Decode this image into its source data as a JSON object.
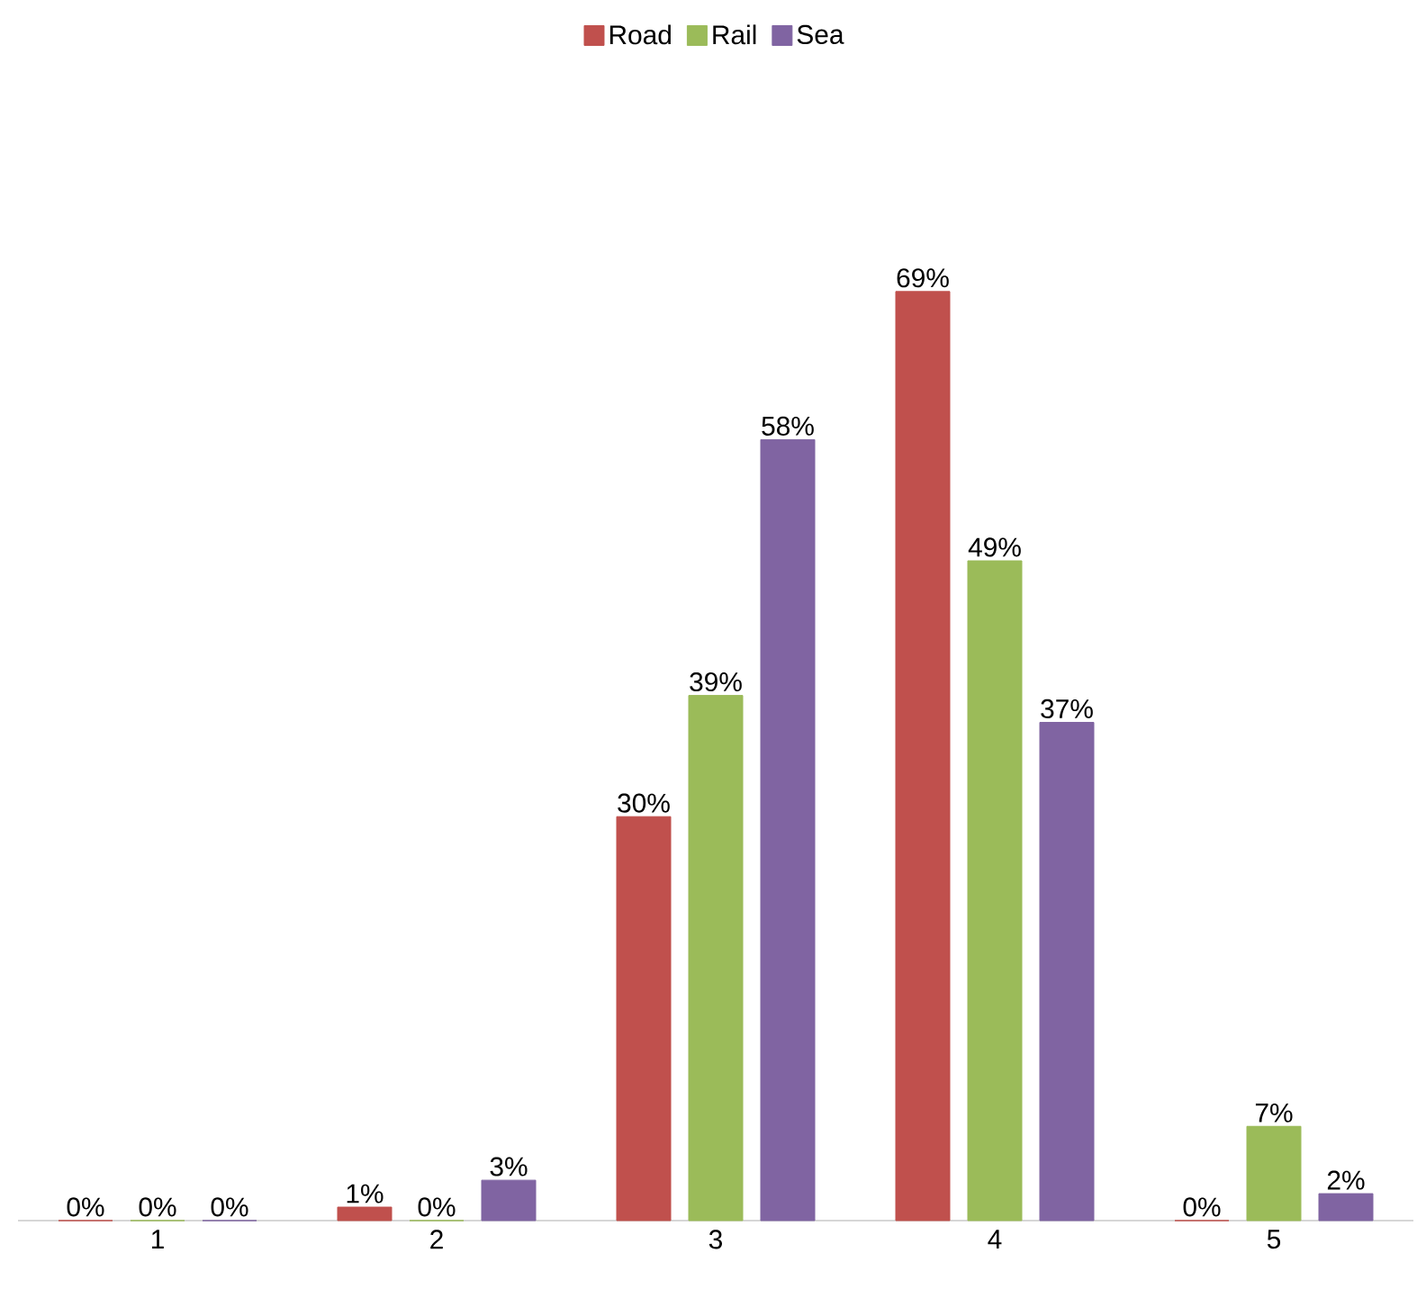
{
  "chart_data": {
    "type": "bar",
    "categories": [
      "1",
      "2",
      "3",
      "4",
      "5"
    ],
    "series": [
      {
        "name": "Road",
        "color": "#c0504d",
        "values": [
          0,
          1,
          30,
          69,
          0
        ],
        "value_labels": [
          "0%",
          "1%",
          "30%",
          "69%",
          "0%"
        ]
      },
      {
        "name": "Rail",
        "color": "#9bbb59",
        "values": [
          0,
          0,
          39,
          49,
          7
        ],
        "value_labels": [
          "0%",
          "0%",
          "39%",
          "49%",
          "7%"
        ]
      },
      {
        "name": "Sea",
        "color": "#8064a2",
        "values": [
          0,
          3,
          58,
          37,
          2
        ],
        "value_labels": [
          "0%",
          "3%",
          "58%",
          "37%",
          "2%"
        ]
      }
    ],
    "legend": "top",
    "grid": false,
    "tick_labels": "x"
  }
}
